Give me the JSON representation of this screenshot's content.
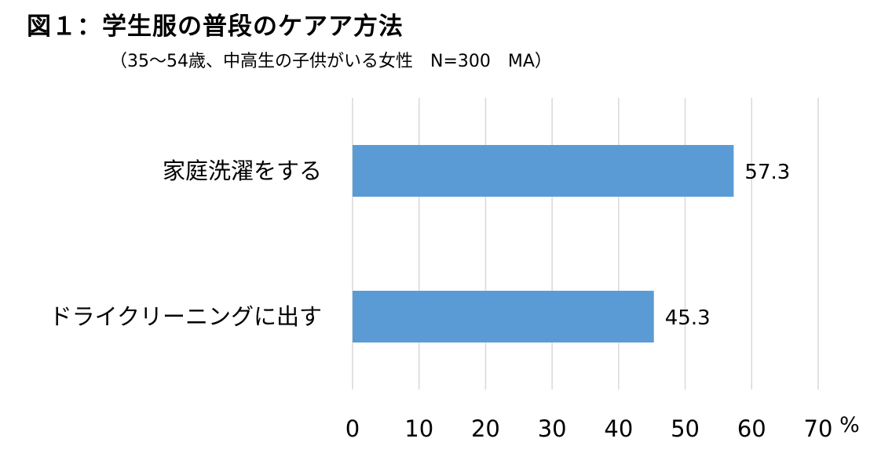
{
  "title": "図１：学生服の普段のケアア方法",
  "subtitle": "（35～54歳、中高生の子供がいる女性　N=300　MA）",
  "chart_data": {
    "type": "bar",
    "orientation": "horizontal",
    "categories": [
      "家庭洗濯をする",
      "ドライクリーニングに出す"
    ],
    "values": [
      57.3,
      45.3
    ],
    "value_labels": [
      "57.3",
      "45.3"
    ],
    "xlim": [
      0,
      70
    ],
    "x_ticks": [
      "0",
      "10",
      "20",
      "30",
      "40",
      "50",
      "60",
      "70"
    ],
    "unit": "%",
    "grid": true,
    "bar_color": "#5B9BD5",
    "grid_color": "#D9D9D9"
  }
}
